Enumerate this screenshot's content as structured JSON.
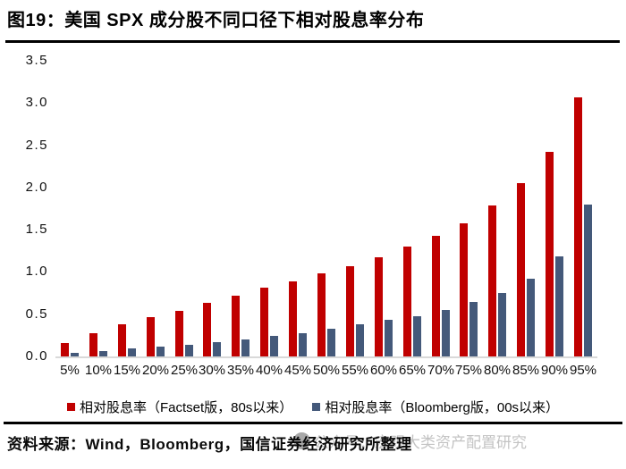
{
  "title": "图19：美国 SPX 成分股不同口径下相对股息率分布",
  "source_note": "资料来源：Wind，Bloomberg，国信证券经济研究所整理",
  "watermark": {
    "text": "公众号：宏观大类资产配置研究"
  },
  "colors": {
    "series1": "#C00000",
    "series2": "#44597A",
    "axis_line": "#D9D9D9",
    "rule": "#000000",
    "watermark_gray": "#C3C3C3"
  },
  "chart_data": {
    "type": "bar",
    "title": "",
    "xlabel": "",
    "ylabel": "",
    "categories": [
      "5%",
      "10%",
      "15%",
      "20%",
      "25%",
      "30%",
      "35%",
      "40%",
      "45%",
      "50%",
      "55%",
      "60%",
      "65%",
      "70%",
      "75%",
      "80%",
      "85%",
      "90%",
      "95%"
    ],
    "series": [
      {
        "name": "相对股息率（Factset版，80s以来）",
        "color": "#C00000",
        "values": [
          0.16,
          0.28,
          0.38,
          0.46,
          0.54,
          0.63,
          0.72,
          0.81,
          0.89,
          0.98,
          1.07,
          1.17,
          1.3,
          1.43,
          1.58,
          1.79,
          2.05,
          2.42,
          3.07
        ]
      },
      {
        "name": "相对股息率（Bloomberg版，00s以来）",
        "color": "#44597A",
        "values": [
          0.04,
          0.06,
          0.09,
          0.12,
          0.14,
          0.17,
          0.2,
          0.24,
          0.28,
          0.33,
          0.38,
          0.43,
          0.48,
          0.55,
          0.64,
          0.75,
          0.92,
          1.18,
          1.8
        ]
      }
    ],
    "ylim": [
      0,
      3.5
    ],
    "yticks": [
      "0.0",
      "0.5",
      "1.0",
      "1.5",
      "2.0",
      "2.5",
      "3.0",
      "3.5"
    ],
    "grid": false,
    "legend_position": "bottom"
  }
}
